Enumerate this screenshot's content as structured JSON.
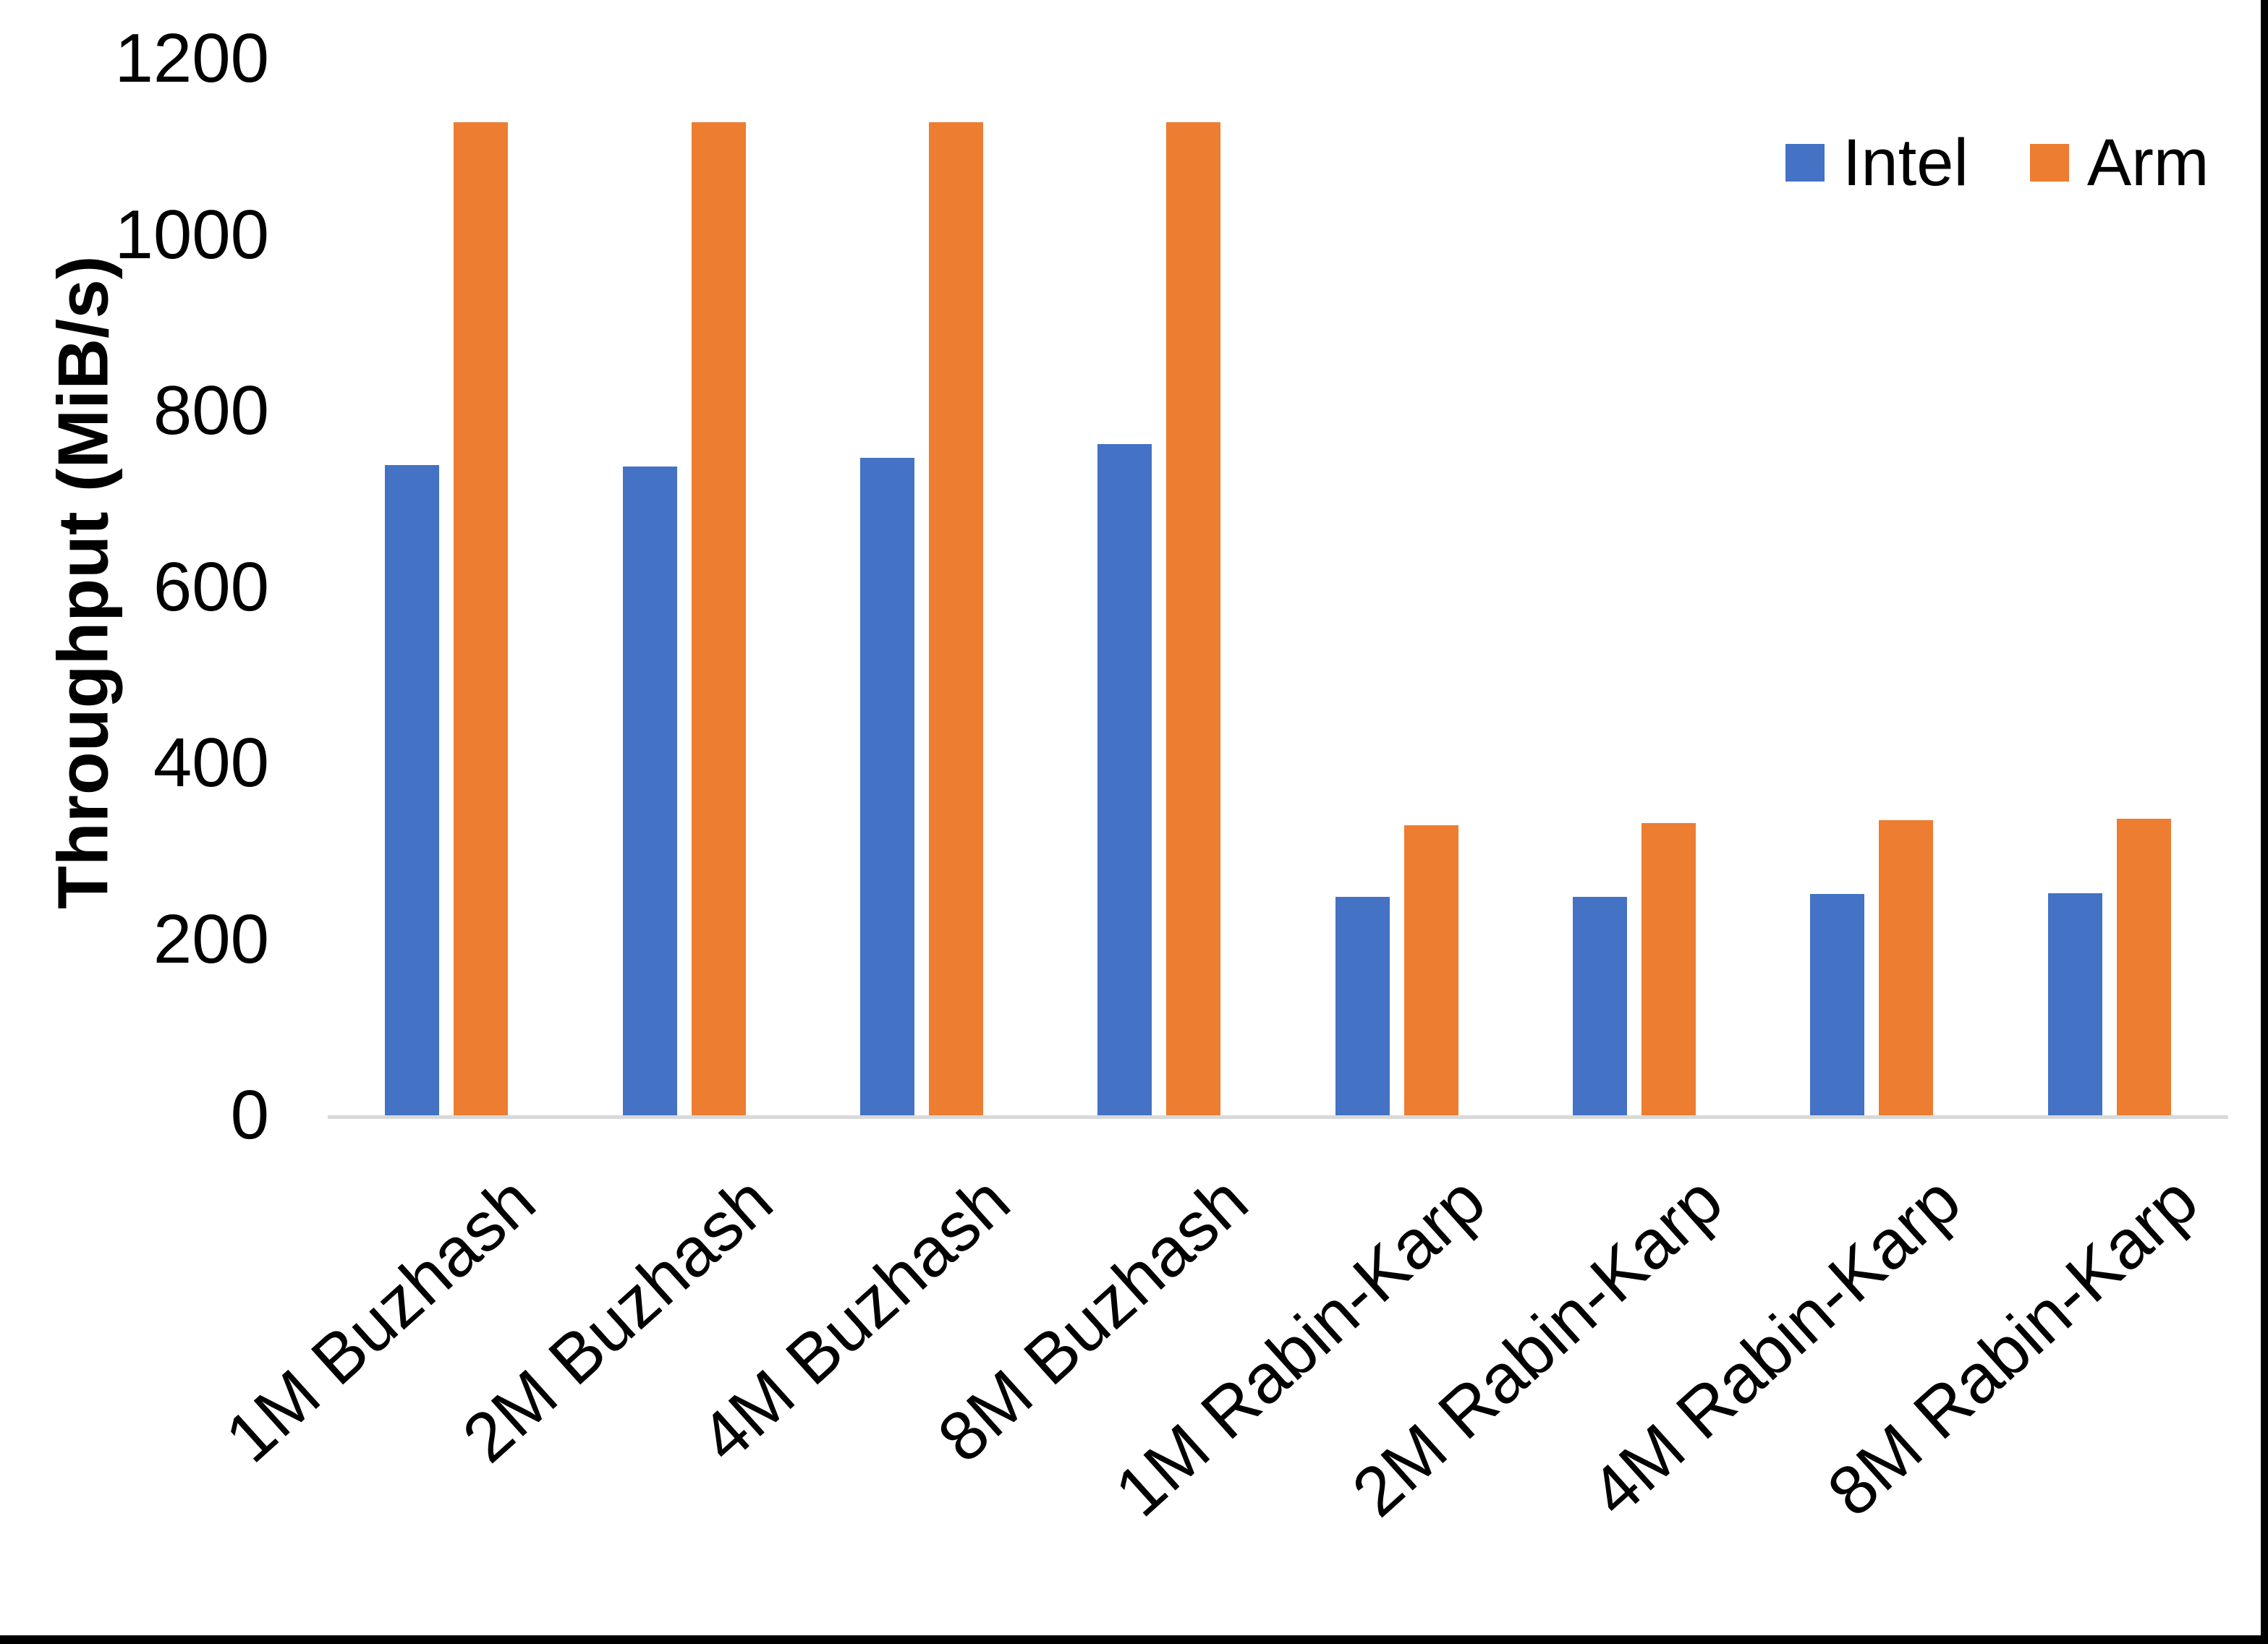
{
  "chart_data": {
    "type": "bar",
    "title": "",
    "ylabel": "Throughput (MiB/s)",
    "xlabel": "",
    "categories": [
      "1M Buzhash",
      "2M Buzhash",
      "4M Buzhash",
      "8M Buzhash",
      "1M Rabin-Karp",
      "2M Rabin-Karp",
      "4M Rabin-Karp",
      "8M Rabin-Karp"
    ],
    "series": [
      {
        "name": "Intel",
        "color": "#4472C4",
        "values": [
          738,
          737,
          747,
          762,
          248,
          248,
          251,
          252
        ]
      },
      {
        "name": "Arm",
        "color": "#ED7D31",
        "values": [
          1128,
          1128,
          1128,
          1128,
          329,
          332,
          335,
          337
        ]
      }
    ],
    "ylim": [
      0,
      1200
    ],
    "yticks": [
      0,
      200,
      400,
      600,
      800,
      1000,
      1200
    ],
    "grid": false,
    "legend_position": "top-right",
    "axis_line_color": "#D9D9D9",
    "text_color": "#000000",
    "background_color": "#FFFFFF",
    "border_color": "#000000"
  }
}
